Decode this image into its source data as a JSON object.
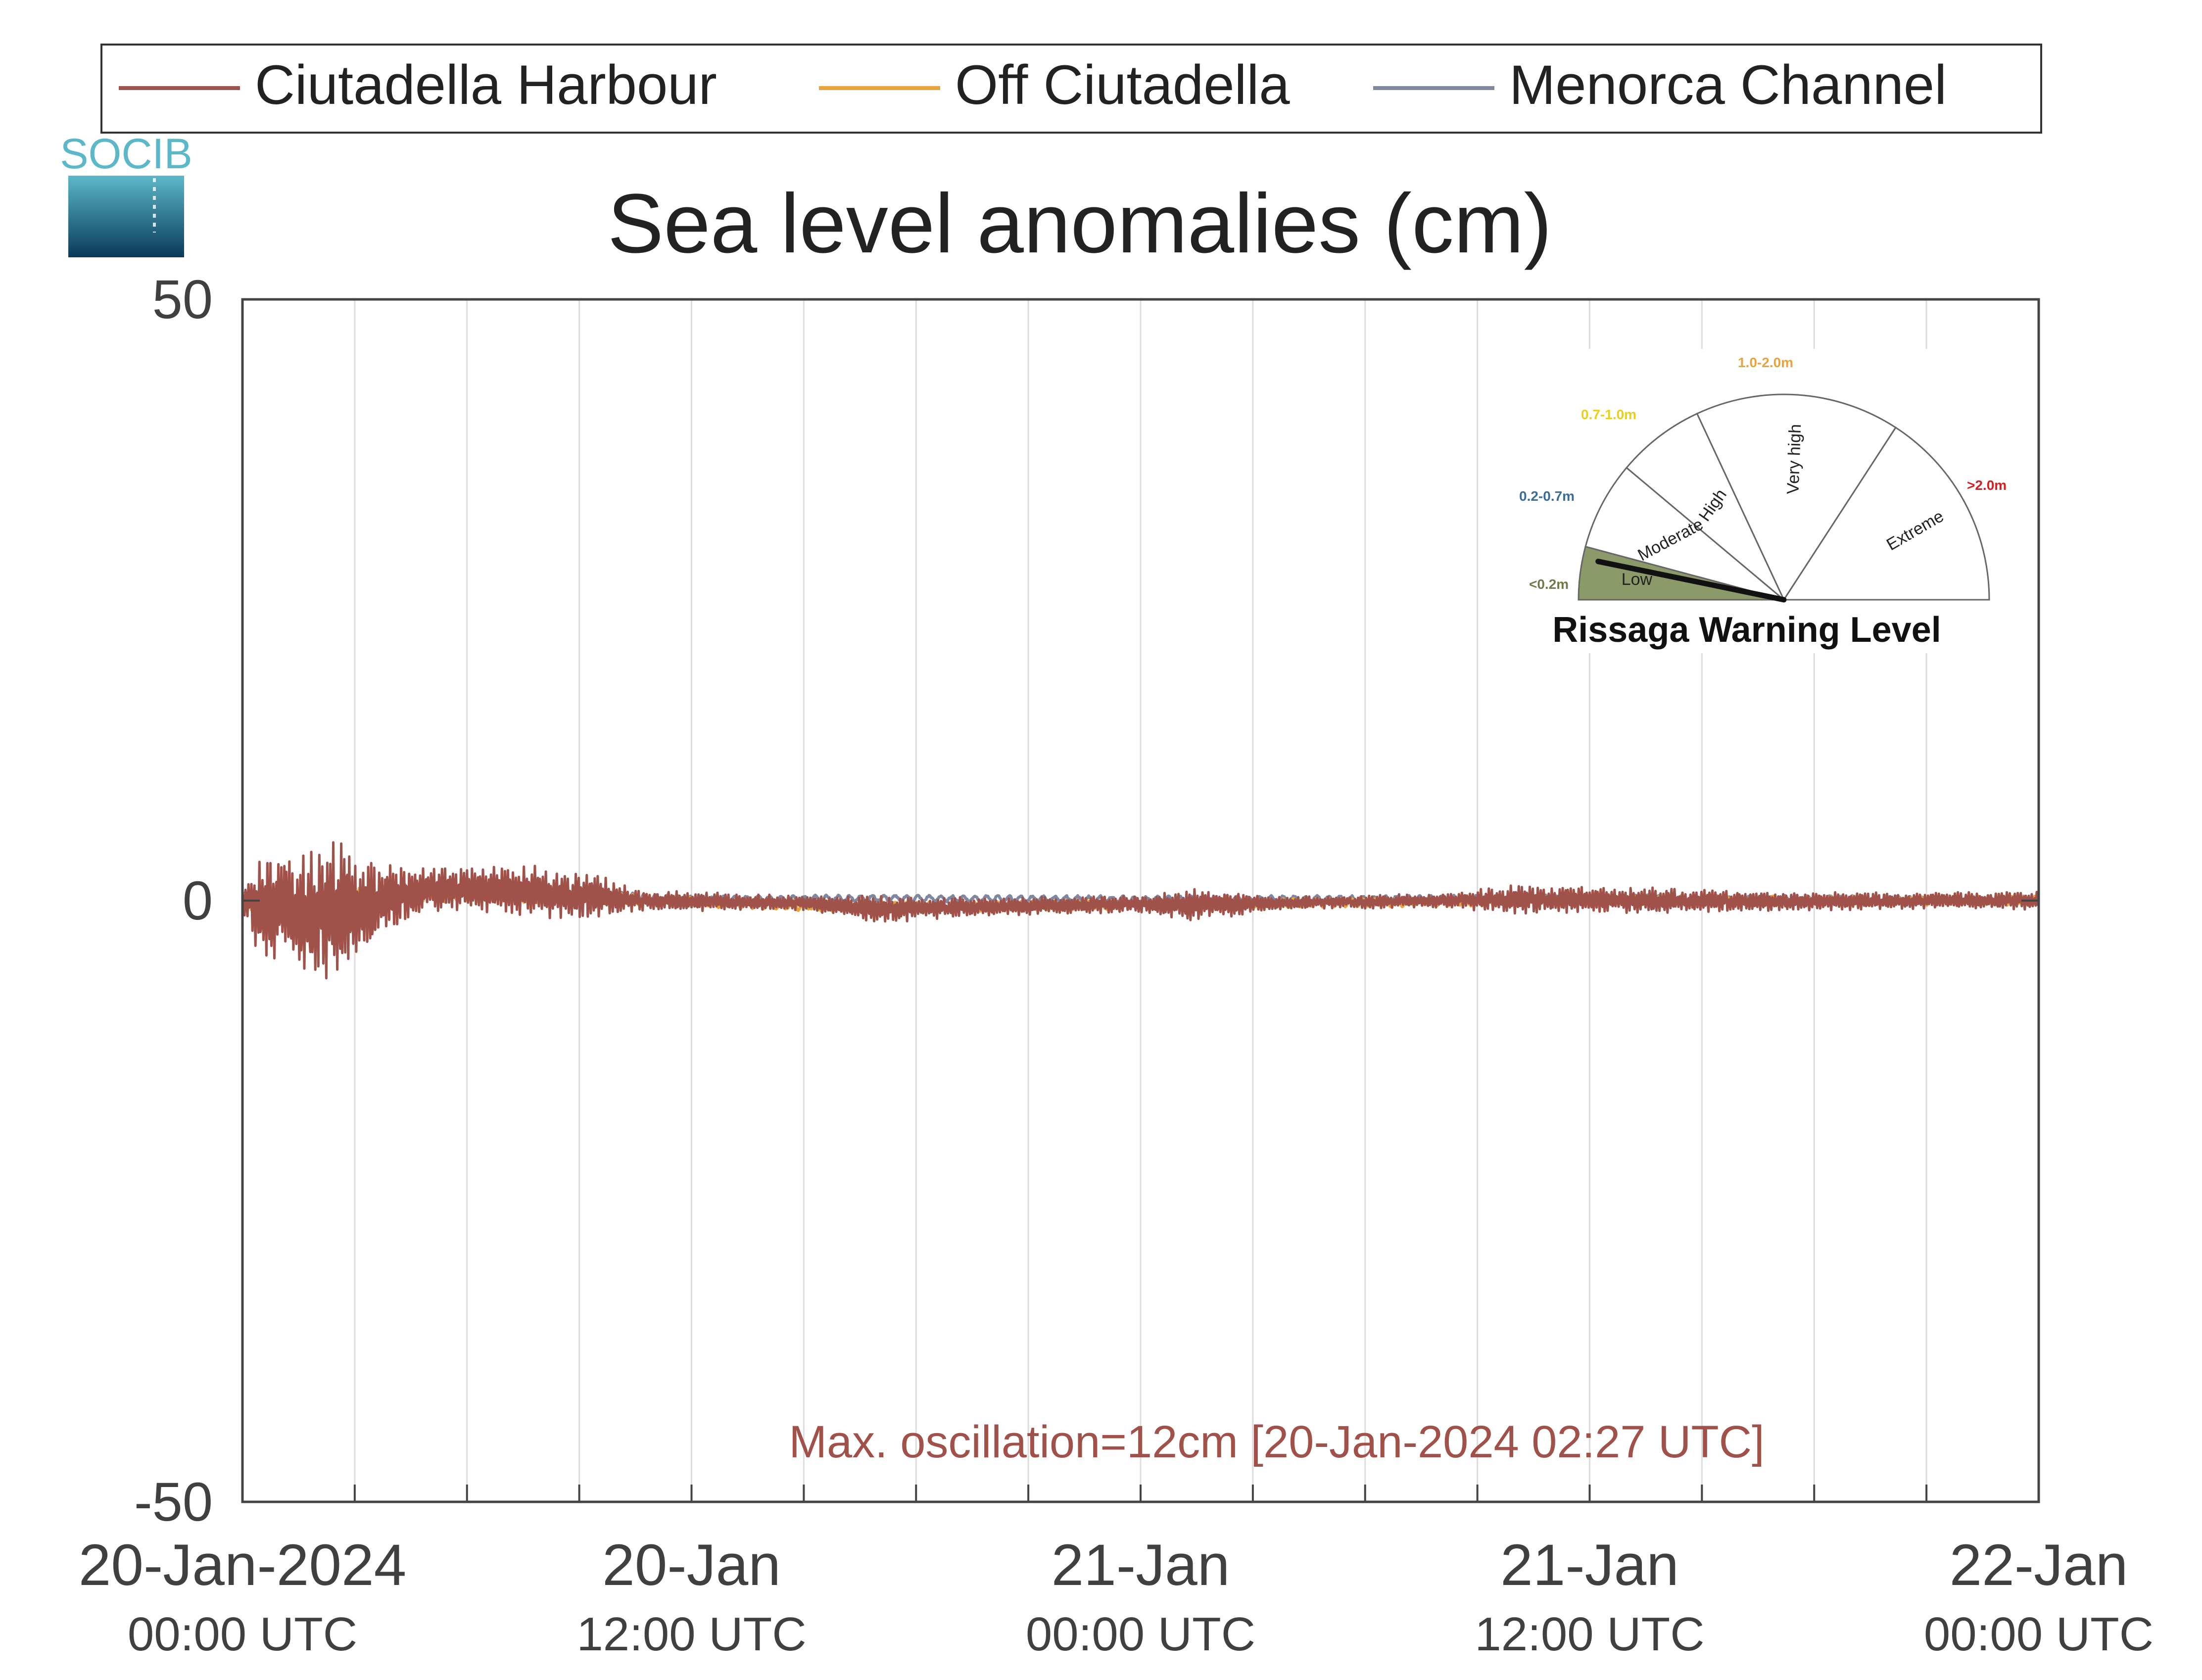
{
  "chart_data": {
    "type": "line",
    "title": "Sea level anomalies (cm)",
    "xlabel": "",
    "ylabel": "",
    "ylim": [
      -50,
      50
    ],
    "xlim": [
      "2024-01-20 00:00",
      "2024-01-22 00:00"
    ],
    "x_unit": "UTC",
    "grid": "vertical",
    "legend_position": "top",
    "y_ticks": [
      {
        "value": -50,
        "label": "-50"
      },
      {
        "value": 0,
        "label": "0"
      },
      {
        "value": 50,
        "label": "50"
      }
    ],
    "x_ticks": [
      {
        "time": "2024-01-20 00:00",
        "line1": "20-Jan-2024",
        "line2": "00:00 UTC"
      },
      {
        "time": "2024-01-20 12:00",
        "line1": "20-Jan",
        "line2": "12:00 UTC"
      },
      {
        "time": "2024-01-21 00:00",
        "line1": "21-Jan",
        "line2": "00:00 UTC"
      },
      {
        "time": "2024-01-21 12:00",
        "line1": "21-Jan",
        "line2": "12:00 UTC"
      },
      {
        "time": "2024-01-22 00:00",
        "line1": "22-Jan",
        "line2": "00:00 UTC"
      }
    ],
    "x_gridlines": [
      "2024-01-20 03:00",
      "2024-01-20 06:00",
      "2024-01-20 09:00",
      "2024-01-20 12:00",
      "2024-01-20 15:00",
      "2024-01-20 18:00",
      "2024-01-20 21:00",
      "2024-01-21 00:00",
      "2024-01-21 03:00",
      "2024-01-21 06:00",
      "2024-01-21 09:00",
      "2024-01-21 12:00",
      "2024-01-21 15:00",
      "2024-01-21 18:00",
      "2024-01-21 21:00"
    ],
    "series": [
      {
        "name": "Ciutadella Harbour",
        "color": "#A0524A",
        "envelope": [
          {
            "t": "2024-01-20 00:00",
            "amp": 1.0,
            "mean": 0.0
          },
          {
            "t": "2024-01-20 00:30",
            "amp": 4.5,
            "mean": -0.5
          },
          {
            "t": "2024-01-20 02:27",
            "amp": 6.0,
            "mean": -0.8
          },
          {
            "t": "2024-01-20 03:30",
            "amp": 4.0,
            "mean": -0.3
          },
          {
            "t": "2024-01-20 05:00",
            "amp": 1.8,
            "mean": 1.0
          },
          {
            "t": "2024-01-20 07:30",
            "amp": 2.2,
            "mean": 0.8
          },
          {
            "t": "2024-01-20 09:30",
            "amp": 2.0,
            "mean": 0.3
          },
          {
            "t": "2024-01-20 10:30",
            "amp": 0.9,
            "mean": 0.0
          },
          {
            "t": "2024-01-20 15:00",
            "amp": 0.6,
            "mean": -0.2
          },
          {
            "t": "2024-01-20 17:00",
            "amp": 1.2,
            "mean": -0.7
          },
          {
            "t": "2024-01-20 20:00",
            "amp": 0.8,
            "mean": -0.5
          },
          {
            "t": "2024-01-21 00:00",
            "amp": 0.7,
            "mean": -0.3
          },
          {
            "t": "2024-01-21 01:30",
            "amp": 1.4,
            "mean": -0.4
          },
          {
            "t": "2024-01-21 03:30",
            "amp": 0.6,
            "mean": -0.2
          },
          {
            "t": "2024-01-21 08:00",
            "amp": 0.6,
            "mean": 0.0
          },
          {
            "t": "2024-01-21 10:00",
            "amp": 1.2,
            "mean": 0.1
          },
          {
            "t": "2024-01-21 15:00",
            "amp": 1.0,
            "mean": 0.0
          },
          {
            "t": "2024-01-21 17:00",
            "amp": 0.8,
            "mean": -0.1
          },
          {
            "t": "2024-01-21 21:00",
            "amp": 0.7,
            "mean": 0.0
          },
          {
            "t": "2024-01-22 00:00",
            "amp": 0.8,
            "mean": 0.0
          }
        ]
      },
      {
        "name": "Off Ciutadella",
        "color": "#E8A33C",
        "envelope": [
          {
            "t": "2024-01-20 00:00",
            "amp": 0.8,
            "mean": 0.0
          },
          {
            "t": "2024-01-20 02:00",
            "amp": 1.3,
            "mean": -0.4
          },
          {
            "t": "2024-01-20 05:00",
            "amp": 0.8,
            "mean": 0.7
          },
          {
            "t": "2024-01-20 09:00",
            "amp": 0.6,
            "mean": 0.2
          },
          {
            "t": "2024-01-20 12:00",
            "amp": 0.4,
            "mean": -0.1
          },
          {
            "t": "2024-01-20 17:00",
            "amp": 0.5,
            "mean": -0.6
          },
          {
            "t": "2024-01-21 00:00",
            "amp": 0.4,
            "mean": -0.3
          },
          {
            "t": "2024-01-21 12:00",
            "amp": 0.4,
            "mean": 0.0
          },
          {
            "t": "2024-01-22 00:00",
            "amp": 0.4,
            "mean": 0.0
          }
        ]
      },
      {
        "name": "Menorca Channel",
        "color": "#8087A0",
        "envelope": [
          {
            "t": "2024-01-20 00:00",
            "amp": 0.8,
            "mean": 0.2
          },
          {
            "t": "2024-01-20 02:00",
            "amp": 1.0,
            "mean": -0.2
          },
          {
            "t": "2024-01-20 05:00",
            "amp": 0.6,
            "mean": 0.9
          },
          {
            "t": "2024-01-20 09:00",
            "amp": 0.4,
            "mean": 0.5
          },
          {
            "t": "2024-01-20 12:00",
            "amp": 0.3,
            "mean": 0.1
          },
          {
            "t": "2024-01-20 17:00",
            "amp": 0.3,
            "mean": 0.2
          },
          {
            "t": "2024-01-21 00:00",
            "amp": 0.3,
            "mean": 0.1
          },
          {
            "t": "2024-01-21 12:00",
            "amp": 0.3,
            "mean": 0.2
          },
          {
            "t": "2024-01-22 00:00",
            "amp": 0.3,
            "mean": 0.1
          }
        ]
      }
    ],
    "annotation": {
      "text": "Max. oscillation=12cm [20-Jan-2024 02:27 UTC]",
      "color": "#A0524A"
    }
  },
  "logo": {
    "text": "SOCIB",
    "color_top": "#5BB8C8",
    "color_bottom": "#0A3A5A"
  },
  "gauge": {
    "title": "Rissaga Warning Level",
    "current_level": "Low",
    "needle_fraction": 0.05,
    "levels": [
      {
        "label": "Low",
        "range": "<0.2m",
        "range_color": "#6E7A4A",
        "fill": "#8C9A6A"
      },
      {
        "label": "Moderate",
        "range": "0.2-0.7m",
        "range_color": "#3A6E9A",
        "fill": "#ffffff"
      },
      {
        "label": "High",
        "range": "0.7-1.0m",
        "range_color": "#E8D020",
        "fill": "#ffffff"
      },
      {
        "label": "Very high",
        "range": "1.0-2.0m",
        "range_color": "#E8A33C",
        "fill": "#ffffff"
      },
      {
        "label": "Extreme",
        "range": ">2.0m",
        "range_color": "#D42020",
        "fill": "#ffffff"
      }
    ]
  }
}
